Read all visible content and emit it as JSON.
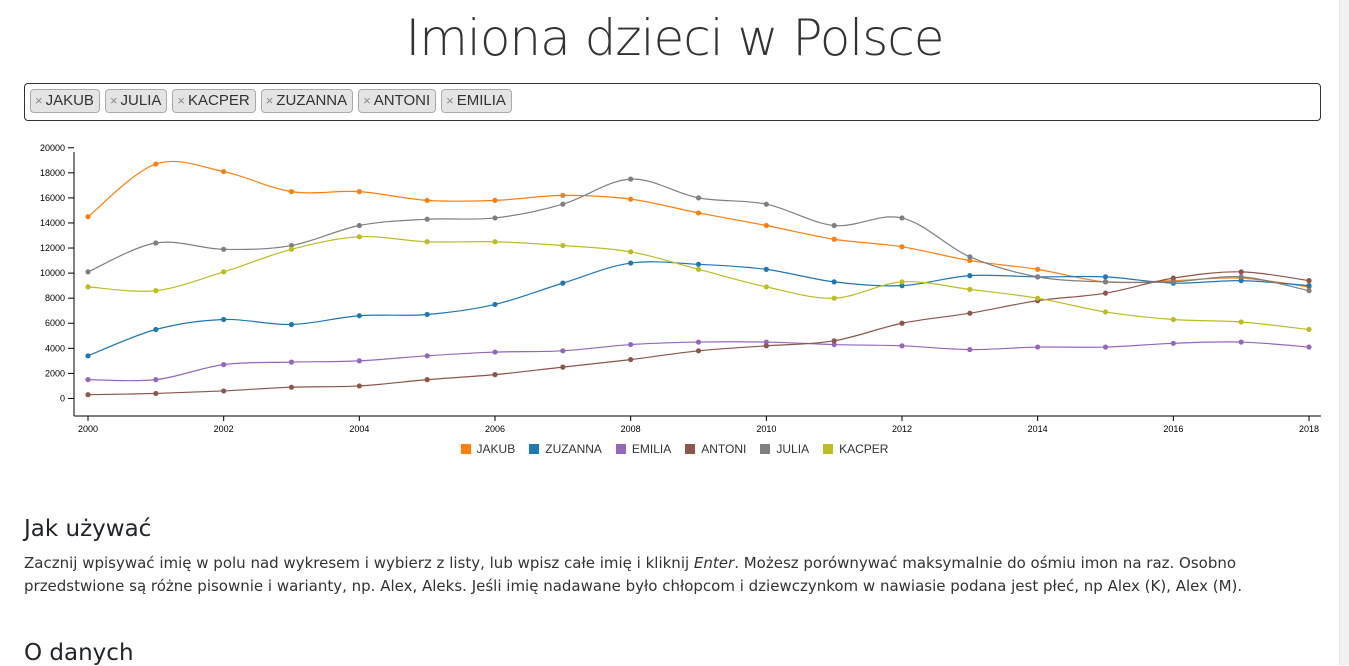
{
  "page": {
    "title": "Imiona dzieci w Polsce"
  },
  "tags": [
    {
      "remove": "×",
      "label": "JAKUB"
    },
    {
      "remove": "×",
      "label": "JULIA"
    },
    {
      "remove": "×",
      "label": "KACPER"
    },
    {
      "remove": "×",
      "label": "ZUZANNA"
    },
    {
      "remove": "×",
      "label": "ANTONI"
    },
    {
      "remove": "×",
      "label": "EMILIA"
    }
  ],
  "howto": {
    "heading": "Jak używać",
    "text_before": "Zacznij wpisywać imię w polu nad wykresem i wybierz z listy, lub wpisz całe imię i kliknij ",
    "text_emphasis": "Enter",
    "text_after": ". Możesz porównywać maksymalnie do ośmiu imon na raz. Osobno przedstwione są różne pisownie i warianty, np. Alex, Aleks. Jeśli imię nadawane było chłopcom i dziewczynkom w nawiasie podana jest płeć, np Alex (K), Alex (M)."
  },
  "data_section": {
    "heading": "O danych"
  },
  "chart_data": {
    "type": "line",
    "x": [
      2000,
      2001,
      2002,
      2003,
      2004,
      2005,
      2006,
      2007,
      2008,
      2009,
      2010,
      2011,
      2012,
      2013,
      2014,
      2015,
      2016,
      2017,
      2018
    ],
    "xlim": [
      2000,
      2018
    ],
    "ylim": [
      -1400,
      20300
    ],
    "x_ticks": [
      "2000",
      "2002",
      "2004",
      "2006",
      "2008",
      "2010",
      "2012",
      "2014",
      "2016",
      "2018"
    ],
    "y_ticks": [
      "0",
      "2000",
      "4000",
      "6000",
      "8000",
      "10000",
      "12000",
      "14000",
      "16000",
      "18000",
      "20000"
    ],
    "legend_position": "bottom-center",
    "grid": false,
    "series": [
      {
        "name": "JAKUB",
        "color": "#ff7f0e",
        "values": [
          14500,
          18700,
          18100,
          16500,
          16500,
          15800,
          15800,
          16200,
          15900,
          14800,
          13800,
          12700,
          12100,
          11000,
          10300,
          9300,
          9400,
          9600,
          8900
        ]
      },
      {
        "name": "ZUZANNA",
        "color": "#1f77b4",
        "values": [
          3400,
          5500,
          6300,
          5900,
          6600,
          6700,
          7500,
          9200,
          10800,
          10700,
          10300,
          9300,
          9000,
          9800,
          9700,
          9700,
          9200,
          9400,
          9000
        ]
      },
      {
        "name": "EMILIA",
        "color": "#9467bd",
        "values": [
          1500,
          1500,
          2700,
          2900,
          3000,
          3400,
          3700,
          3800,
          4300,
          4500,
          4500,
          4300,
          4200,
          3900,
          4100,
          4100,
          4400,
          4500,
          4100
        ]
      },
      {
        "name": "ANTONI",
        "color": "#8c564b",
        "values": [
          300,
          400,
          600,
          900,
          1000,
          1500,
          1900,
          2500,
          3100,
          3800,
          4200,
          4600,
          6000,
          6800,
          7800,
          8400,
          9600,
          10100,
          9400
        ]
      },
      {
        "name": "JULIA",
        "color": "#7f7f7f",
        "values": [
          10100,
          12400,
          11900,
          12200,
          13800,
          14300,
          14400,
          15500,
          17500,
          16000,
          15500,
          13800,
          14400,
          11300,
          9700,
          9300,
          9300,
          9700,
          8600
        ]
      },
      {
        "name": "KACPER",
        "color": "#bcbd22",
        "values": [
          8900,
          8600,
          10100,
          11900,
          12900,
          12500,
          12500,
          12200,
          11700,
          10300,
          8900,
          8000,
          9300,
          8700,
          8000,
          6900,
          6300,
          6100,
          5500
        ]
      }
    ]
  }
}
